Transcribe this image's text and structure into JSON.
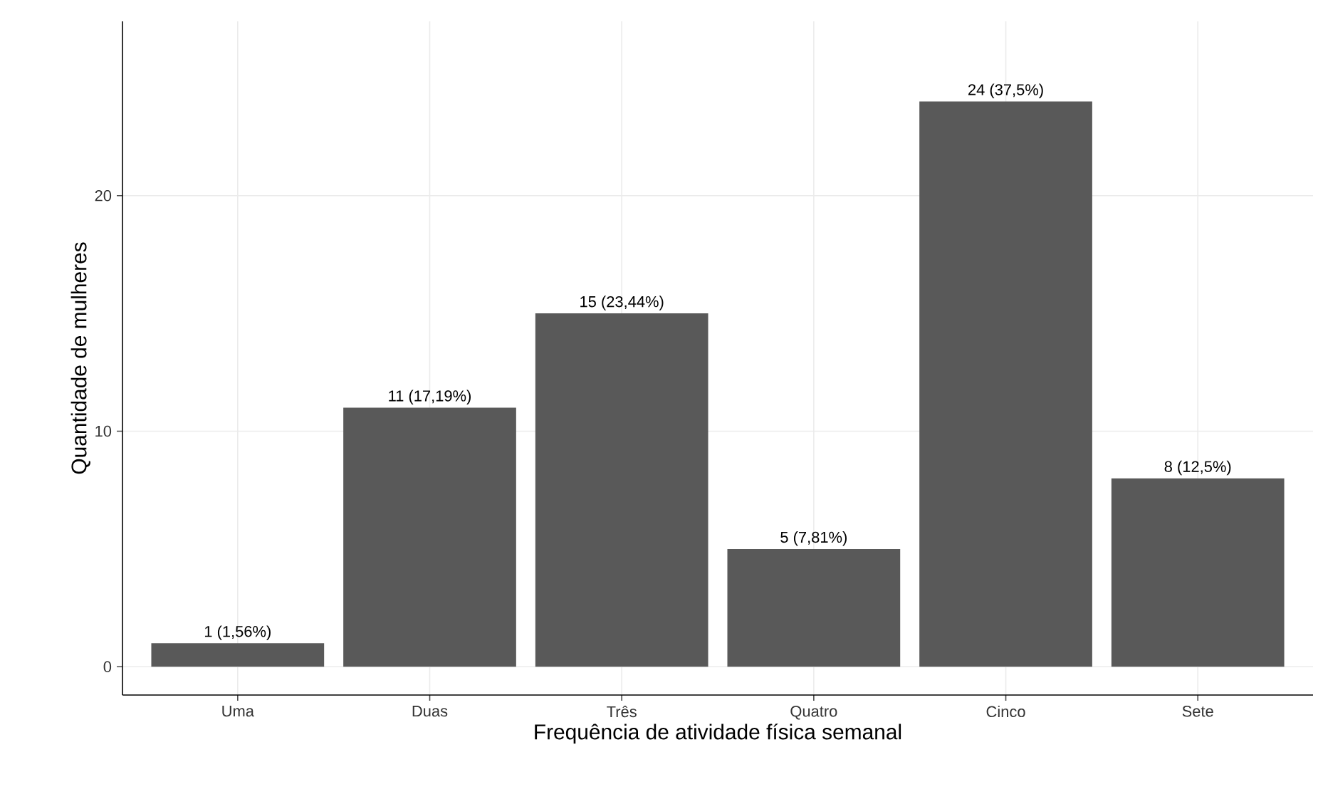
{
  "chart_data": {
    "type": "bar",
    "xlabel": "Frequência de atividade física semanal",
    "ylabel": "Quantidade de mulheres",
    "categories": [
      "Uma",
      "Duas",
      "Três",
      "Quatro",
      "Cinco",
      "Sete"
    ],
    "values": [
      1,
      11,
      15,
      5,
      24,
      8
    ],
    "value_labels": [
      "1 (1,56%)",
      "11 (17,19%)",
      "15 (23,44%)",
      "5 (7,81%)",
      "24 (37,5%)",
      "8 (12,5%)"
    ],
    "color": "#595959",
    "ylim": [
      -1.2,
      27.4
    ],
    "yticks": [
      0,
      10,
      20
    ],
    "grid": true
  }
}
